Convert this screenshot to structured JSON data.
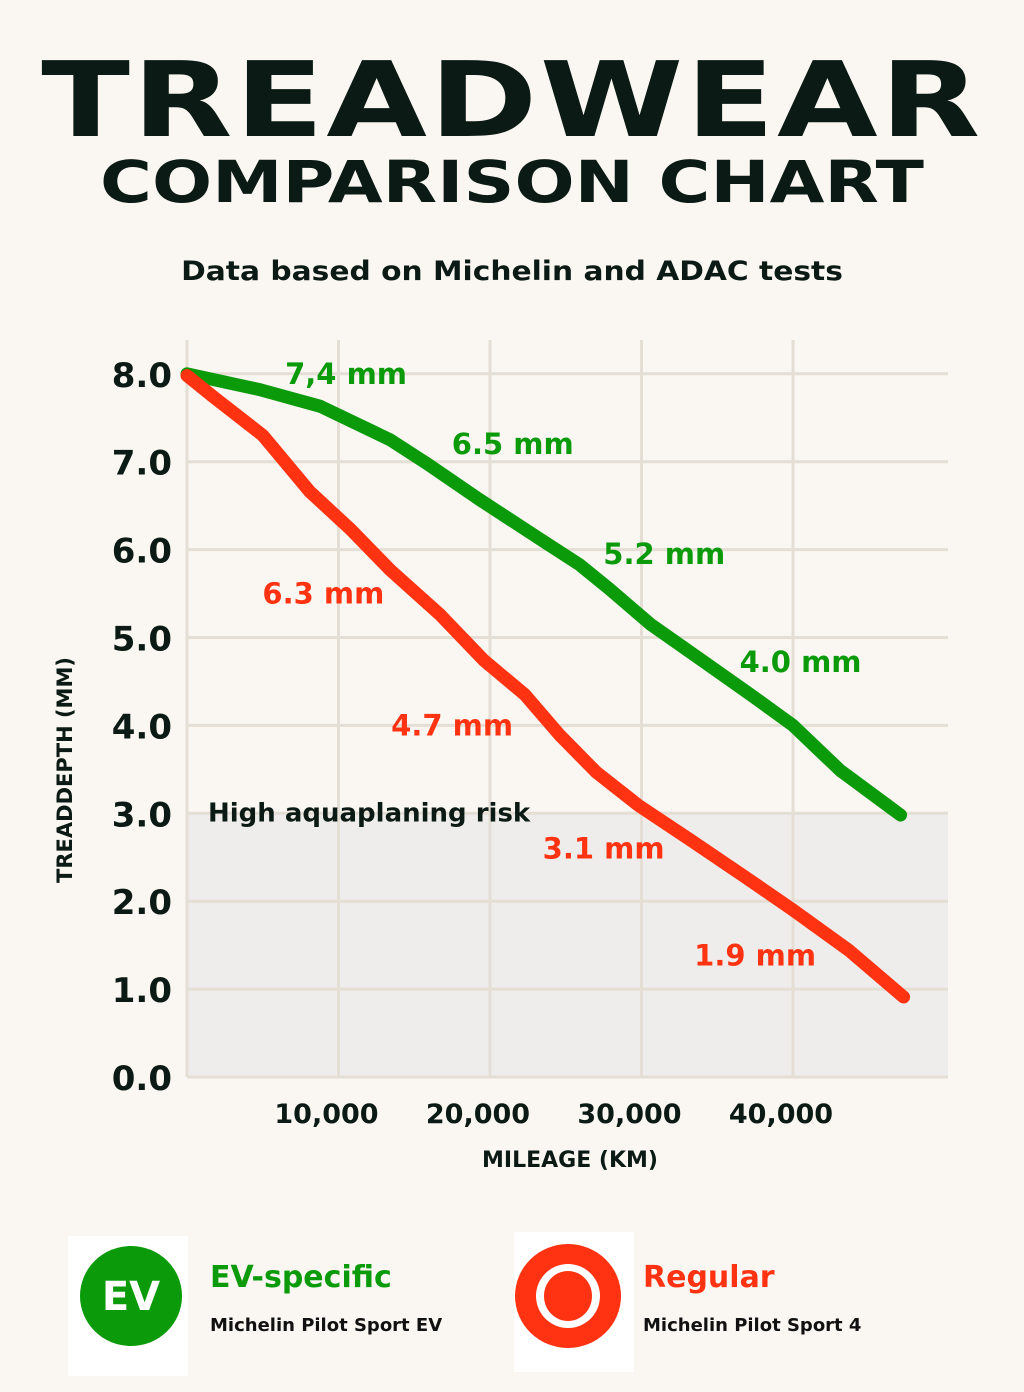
{
  "title_line1": "TREADWEAR",
  "title_line2": "COMPARISON CHART",
  "subtitle": "Data based on Michelin and ADAC tests",
  "colors": {
    "ev": "#0a9a0a",
    "regular": "#ff3311",
    "grid": "#e4ded4",
    "risk_zone": "#eeedeb",
    "text": "#0b1a14"
  },
  "chart_data": {
    "type": "line",
    "xlabel": "MILEAGE (KM)",
    "ylabel": "TREADDEPTH (MM)",
    "xlim": [
      0,
      50000
    ],
    "ylim": [
      0,
      8
    ],
    "x_ticks": [
      10000,
      20000,
      30000,
      40000
    ],
    "x_tick_labels": [
      "10,000",
      "20,000",
      "30,000",
      "40,000"
    ],
    "y_ticks": [
      0,
      1,
      2,
      3,
      4,
      5,
      6,
      7,
      8
    ],
    "y_tick_labels": [
      "0.0",
      "1.0",
      "2.0",
      "3.0",
      "4.0",
      "5.0",
      "6.0",
      "7.0",
      "8.0"
    ],
    "grid": true,
    "risk_zone": {
      "label": "High aquaplaning risk",
      "below": 3.0
    },
    "series": [
      {
        "name": "EV-specific",
        "color": "#0a9a0a",
        "x": [
          0,
          4800,
          8800,
          13400,
          16000,
          19300,
          23300,
          25900,
          27900,
          30600,
          33900,
          37200,
          40000,
          43100,
          47100
        ],
        "y": [
          8.0,
          7.82,
          7.63,
          7.25,
          6.96,
          6.57,
          6.12,
          5.83,
          5.55,
          5.15,
          4.75,
          4.35,
          4.0,
          3.49,
          2.98
        ],
        "annotations": [
          {
            "text": "7,4 mm",
            "x": 10500,
            "y": 8.0
          },
          {
            "text": "6.5 mm",
            "x": 21500,
            "y": 7.2
          },
          {
            "text": "5.2 mm",
            "x": 31500,
            "y": 5.95
          },
          {
            "text": "4.0 mm",
            "x": 40500,
            "y": 4.72
          }
        ]
      },
      {
        "name": "Regular",
        "color": "#ff3311",
        "x": [
          0,
          1800,
          5000,
          8100,
          10800,
          13400,
          16700,
          19600,
          22300,
          24600,
          27000,
          29800,
          33200,
          36800,
          40000,
          43700,
          47300
        ],
        "y": [
          7.98,
          7.73,
          7.3,
          6.66,
          6.23,
          5.77,
          5.26,
          4.74,
          4.35,
          3.89,
          3.47,
          3.09,
          2.7,
          2.28,
          1.9,
          1.44,
          0.91
        ],
        "annotations": [
          {
            "text": "6.3 mm",
            "x": 9000,
            "y": 5.5
          },
          {
            "text": "4.7 mm",
            "x": 17500,
            "y": 4.0
          },
          {
            "text": "3.1 mm",
            "x": 27500,
            "y": 2.6
          },
          {
            "text": "1.9 mm",
            "x": 37500,
            "y": 1.38
          }
        ]
      }
    ]
  },
  "legend": [
    {
      "icon": "ev-badge-icon",
      "icon_text": "EV",
      "title": "EV-specific",
      "subtitle": "Michelin Pilot Sport EV",
      "color": "#0a9a0a"
    },
    {
      "icon": "target-ring-icon",
      "title": "Regular",
      "subtitle": "Michelin Pilot Sport 4",
      "color": "#ff3311"
    }
  ]
}
